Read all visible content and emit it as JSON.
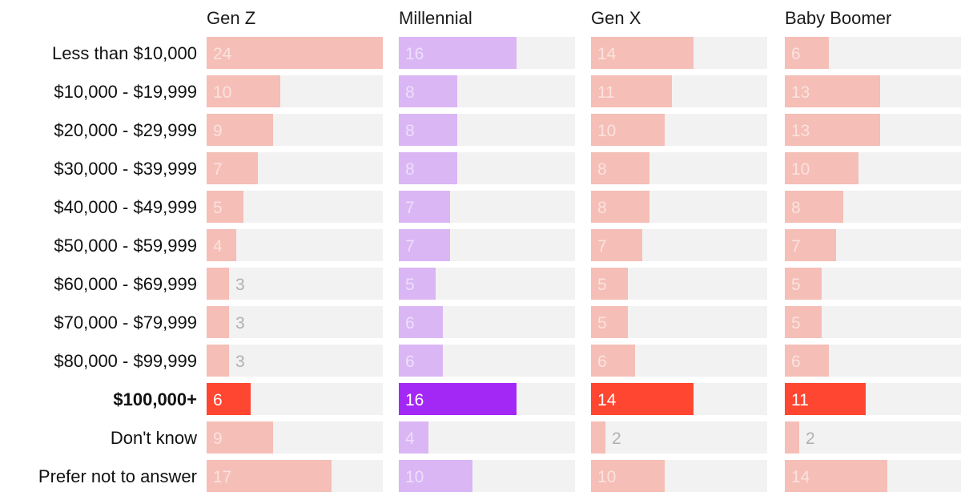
{
  "chart_data": {
    "type": "bar",
    "layout": "small-multiples-horizontal",
    "xlim": [
      0,
      24
    ],
    "highlight_category": "$100,000+",
    "categories": [
      "Less than $10,000",
      "$10,000 - $19,999",
      "$20,000 - $29,999",
      "$30,000 - $39,999",
      "$40,000 - $49,999",
      "$50,000 - $59,999",
      "$60,000 - $69,999",
      "$70,000 - $79,999",
      "$80,000 - $99,999",
      "$100,000+",
      "Don't know",
      "Prefer not to answer"
    ],
    "series": [
      {
        "name": "Gen Z",
        "color": "#f5beb6",
        "highlight_color": "#ff4631",
        "values": [
          24,
          10,
          9,
          7,
          5,
          4,
          3,
          3,
          3,
          6,
          9,
          17
        ]
      },
      {
        "name": "Millennial",
        "color": "#dab6f5",
        "highlight_color": "#a428f5",
        "values": [
          16,
          8,
          8,
          8,
          7,
          7,
          5,
          6,
          6,
          16,
          4,
          10
        ]
      },
      {
        "name": "Gen X",
        "color": "#f5beb6",
        "highlight_color": "#ff4631",
        "values": [
          14,
          11,
          10,
          8,
          8,
          7,
          5,
          5,
          6,
          14,
          2,
          10
        ]
      },
      {
        "name": "Baby Boomer",
        "color": "#f5beb6",
        "highlight_color": "#ff4631",
        "values": [
          6,
          13,
          13,
          10,
          8,
          7,
          5,
          5,
          6,
          11,
          2,
          14
        ]
      }
    ],
    "track_color": "#f2f2f2"
  }
}
